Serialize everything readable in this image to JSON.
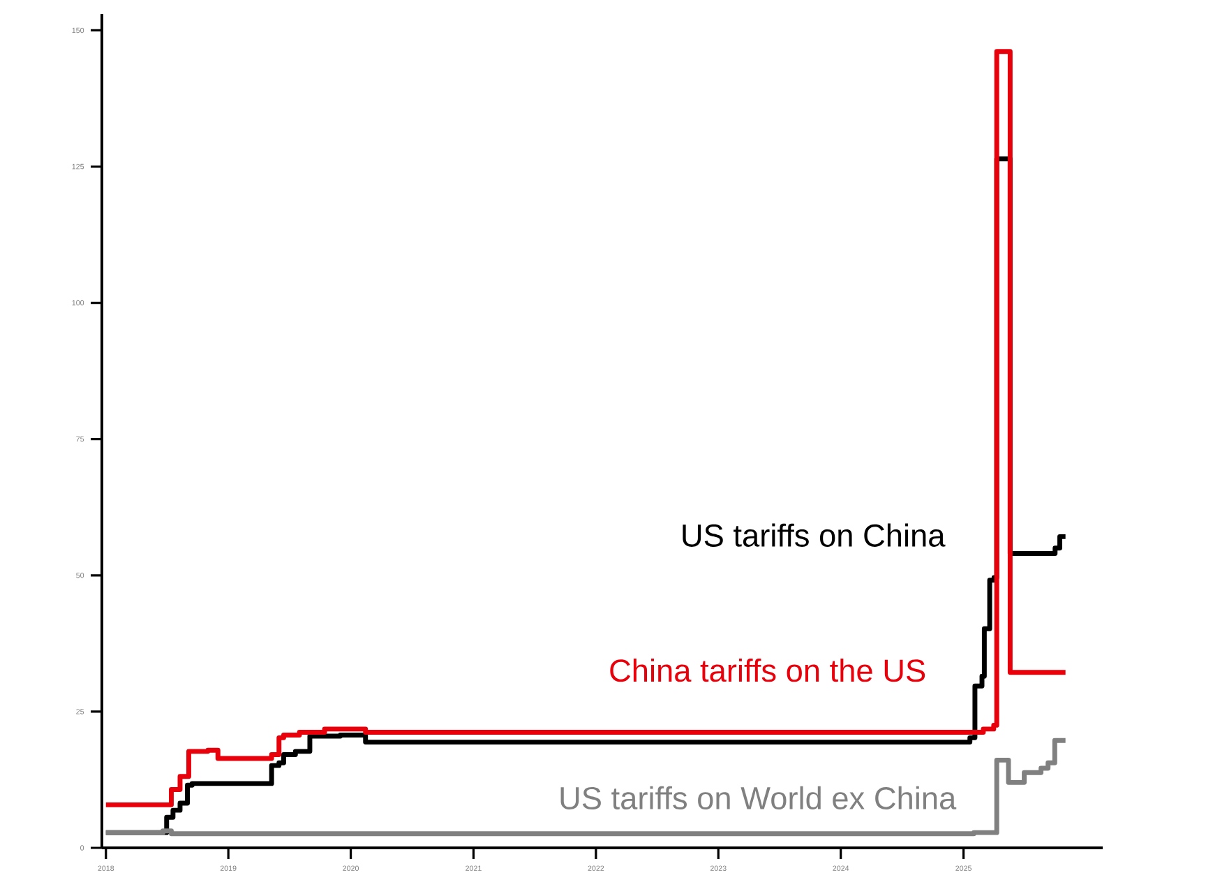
{
  "chart_data": {
    "type": "step",
    "xlim": [
      "2017-12-20",
      "2026-02-20"
    ],
    "ylim": [
      0,
      153
    ],
    "xticks": [
      {
        "value": "2018-01-01",
        "label": "2018"
      },
      {
        "value": "2019-01-01",
        "label": "2019"
      },
      {
        "value": "2020-01-01",
        "label": "2020"
      },
      {
        "value": "2021-01-01",
        "label": "2021"
      },
      {
        "value": "2022-01-01",
        "label": "2022"
      },
      {
        "value": "2023-01-01",
        "label": "2023"
      },
      {
        "value": "2024-01-01",
        "label": "2024"
      },
      {
        "value": "2025-01-01",
        "label": "2025"
      }
    ],
    "yticks": [
      0,
      25,
      50,
      75,
      100,
      125,
      150
    ],
    "marker": "none",
    "line_style": "solid",
    "series": [
      {
        "name": "US tariffs on China",
        "color": "#000000",
        "x": [
          "2018-01-01",
          "2018-06-25",
          "2018-07-01",
          "2018-07-20",
          "2018-08-10",
          "2018-09-01",
          "2018-09-15",
          "2019-04-15",
          "2019-05-10",
          "2019-06-01",
          "2019-06-15",
          "2019-07-20",
          "2019-09-01",
          "2019-12-01",
          "2020-02-01",
          "2020-02-14",
          "2025-01-01",
          "2025-01-20",
          "2025-02-04",
          "2025-02-25",
          "2025-03-04",
          "2025-03-20",
          "2025-04-02",
          "2025-04-10",
          "2025-05-12",
          "2025-05-20",
          "2025-10-01",
          "2025-10-15",
          "2025-11-01"
        ],
        "values": [
          2.8,
          2.8,
          5.6,
          6.9,
          8.2,
          11.5,
          11.8,
          11.8,
          15.1,
          15.6,
          17.1,
          17.7,
          20.5,
          20.7,
          20.7,
          19.4,
          19.4,
          20.2,
          29.7,
          31.5,
          40.2,
          49.1,
          49.6,
          126.4,
          126.4,
          54.0,
          55.0,
          57.1,
          57.1
        ]
      },
      {
        "name": "China tariffs on the US",
        "color": "#e8000b",
        "x": [
          "2018-01-01",
          "2018-06-20",
          "2018-07-15",
          "2018-08-10",
          "2018-09-05",
          "2018-11-01",
          "2018-12-01",
          "2019-04-15",
          "2019-05-10",
          "2019-06-01",
          "2019-06-15",
          "2019-08-01",
          "2019-10-15",
          "2020-02-01",
          "2020-02-14",
          "2025-01-01",
          "2025-03-01",
          "2025-04-01",
          "2025-04-10",
          "2025-05-12",
          "2025-05-20",
          "2025-11-01"
        ],
        "values": [
          7.9,
          7.9,
          10.7,
          13.1,
          17.7,
          17.9,
          16.4,
          16.4,
          17.1,
          20.2,
          20.7,
          21.2,
          21.8,
          21.8,
          21.2,
          21.2,
          21.8,
          22.5,
          146.1,
          146.1,
          32.2,
          32.2
        ]
      },
      {
        "name": "US tariffs on World ex China",
        "color": "#808080",
        "x": [
          "2018-01-01",
          "2018-06-20",
          "2018-07-15",
          "2025-02-01",
          "2025-04-01",
          "2025-04-10",
          "2025-05-01",
          "2025-05-15",
          "2025-06-20",
          "2025-07-01",
          "2025-08-20",
          "2025-09-10",
          "2025-09-30",
          "2025-11-01"
        ],
        "values": [
          2.8,
          3.1,
          2.6,
          2.8,
          2.8,
          16.1,
          16.1,
          12.0,
          12.0,
          13.8,
          14.6,
          15.6,
          19.7,
          19.7
        ]
      }
    ]
  }
}
